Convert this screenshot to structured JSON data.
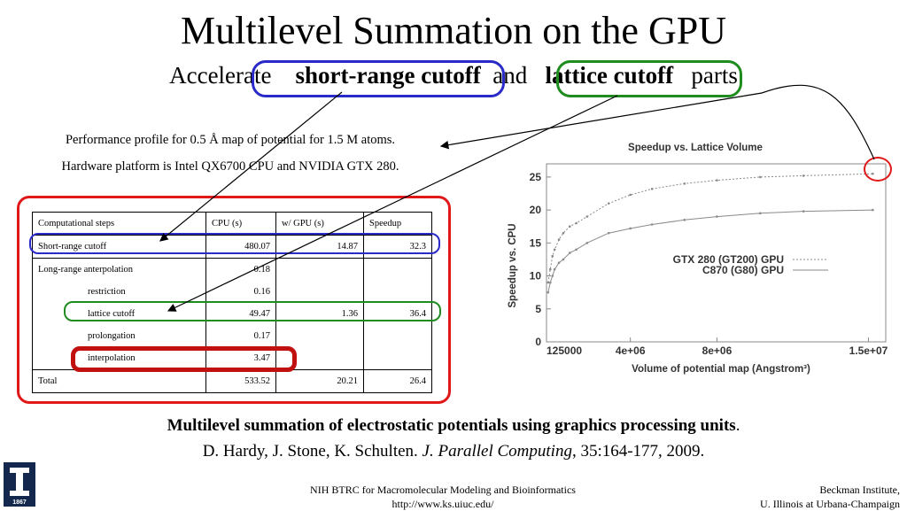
{
  "slide": {
    "title": "Multilevel Summation on the GPU",
    "subtitle": {
      "prefix": "Accelerate",
      "term1": "short-range cutoff",
      "joiner": "and",
      "term2": "lattice cutoff",
      "suffix": "parts"
    },
    "perf_line1": "Performance profile for 0.5 Å map of potential for  1.5 M atoms.",
    "perf_line2": "Hardware platform is Intel QX6700 CPU and NVIDIA GTX 280."
  },
  "table": {
    "headers": [
      "Computational steps",
      "CPU (s)",
      "w/ GPU (s)",
      "Speedup"
    ],
    "rows": [
      {
        "step": "Short-range cutoff",
        "cpu": "480.07",
        "gpu": "14.87",
        "speedup": "32.3"
      },
      {
        "step": "Long-range anterpolation",
        "cpu": "0.18",
        "gpu": "",
        "speedup": ""
      },
      {
        "step": "restriction",
        "cpu": "0.16",
        "gpu": "",
        "speedup": ""
      },
      {
        "step": "lattice cutoff",
        "cpu": "49.47",
        "gpu": "1.36",
        "speedup": "36.4"
      },
      {
        "step": "prolongation",
        "cpu": "0.17",
        "gpu": "",
        "speedup": ""
      },
      {
        "step": "interpolation",
        "cpu": "3.47",
        "gpu": "",
        "speedup": ""
      },
      {
        "step": "Total",
        "cpu": "533.52",
        "gpu": "20.21",
        "speedup": "26.4"
      }
    ]
  },
  "chart_data": {
    "type": "line",
    "title": "Speedup vs. Lattice Volume",
    "xlabel": "Volume of potential map (Angstrom³)",
    "ylabel": "Speedup vs. CPU",
    "xlim": [
      125000,
      15800000
    ],
    "ylim": [
      0,
      27
    ],
    "x_ticks": [
      "125000",
      "4e+06",
      "8e+06",
      "1.5e+07"
    ],
    "y_ticks": [
      "0",
      "5",
      "10",
      "15",
      "20",
      "25"
    ],
    "legend_position": "center-right",
    "series": [
      {
        "name": "GTX 280 (GT200) GPU",
        "color": "#8a8a8a",
        "x": [
          200000,
          300000,
          400000,
          500000,
          700000,
          900000,
          1200000,
          1500000,
          2000000,
          3000000,
          4000000,
          5000000,
          6500000,
          8000000,
          10000000,
          12000000,
          15200000
        ],
        "y": [
          9,
          11,
          13,
          14,
          15.5,
          16.5,
          17.5,
          18,
          19,
          21,
          22.3,
          23.2,
          24,
          24.5,
          25,
          25.2,
          25.5
        ]
      },
      {
        "name": "C870 (G80) GPU",
        "color": "#8a8a8a",
        "x": [
          200000,
          300000,
          400000,
          500000,
          700000,
          900000,
          1200000,
          1500000,
          2000000,
          3000000,
          4000000,
          5000000,
          6500000,
          8000000,
          10000000,
          12000000,
          15200000
        ],
        "y": [
          7.5,
          9,
          10,
          11,
          12,
          12.5,
          13.5,
          14,
          15,
          16.5,
          17.2,
          17.8,
          18.5,
          19,
          19.5,
          19.8,
          20
        ]
      }
    ]
  },
  "citation": {
    "title": "Multilevel summation of electrostatic potentials using graphics processing units",
    "authors": "D. Hardy, J. Stone, K. Schulten.",
    "journal": "J. Parallel Computing",
    "details": ", 35:164-177, 2009."
  },
  "footer": {
    "logo_year": "1867",
    "center_line1": "NIH BTRC for Macromolecular Modeling and Bioinformatics",
    "center_line2": "http://www.ks.uiuc.edu/",
    "right_line1": "Beckman Institute,",
    "right_line2": "U. Illinois at Urbana-Champaign"
  },
  "colors": {
    "blue_highlight": "#2a2ac8",
    "green_highlight": "#1e8c1e",
    "red_highlight": "#e01818",
    "dark_red_highlight": "#c01010",
    "logo_bg": "#13284c"
  }
}
